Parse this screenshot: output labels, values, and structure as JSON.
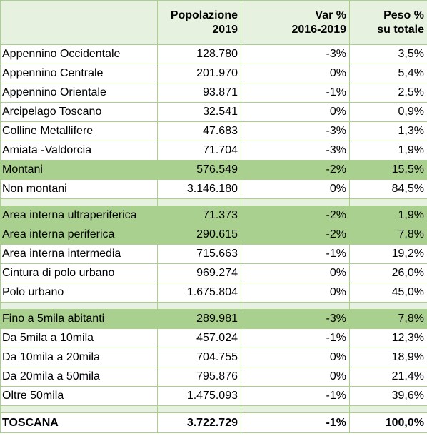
{
  "headers": {
    "population": [
      "Popolazione",
      "2019"
    ],
    "var": [
      "Var %",
      "2016-2019"
    ],
    "weight": [
      "Peso %",
      "su totale"
    ]
  },
  "groups": [
    [
      {
        "label": "Appennino Occidentale",
        "pop": "128.780",
        "var": "-3%",
        "weight": "3,5%",
        "highlight": false
      },
      {
        "label": "Appennino Centrale",
        "pop": "201.970",
        "var": "0%",
        "weight": "5,4%",
        "highlight": false
      },
      {
        "label": "Appennino Orientale",
        "pop": "93.871",
        "var": "-1%",
        "weight": "2,5%",
        "highlight": false
      },
      {
        "label": "Arcipelago Toscano",
        "pop": "32.541",
        "var": "0%",
        "weight": "0,9%",
        "highlight": false
      },
      {
        "label": "Colline Metallifere",
        "pop": "47.683",
        "var": "-3%",
        "weight": "1,3%",
        "highlight": false
      },
      {
        "label": "Amiata -Valdorcia",
        "pop": "71.704",
        "var": "-3%",
        "weight": "1,9%",
        "highlight": false
      },
      {
        "label": "Montani",
        "pop": "576.549",
        "var": "-2%",
        "weight": "15,5%",
        "highlight": true
      },
      {
        "label": "Non montani",
        "pop": "3.146.180",
        "var": "0%",
        "weight": "84,5%",
        "highlight": false
      }
    ],
    [
      {
        "label": "Area interna ultraperiferica",
        "pop": "71.373",
        "var": "-2%",
        "weight": "1,9%",
        "highlight": true
      },
      {
        "label": "Area interna periferica",
        "pop": "290.615",
        "var": "-2%",
        "weight": "7,8%",
        "highlight": true
      },
      {
        "label": "Area interna intermedia",
        "pop": "715.663",
        "var": "-1%",
        "weight": "19,2%",
        "highlight": false
      },
      {
        "label": "Cintura di polo urbano",
        "pop": "969.274",
        "var": "0%",
        "weight": "26,0%",
        "highlight": false
      },
      {
        "label": "Polo urbano",
        "pop": "1.675.804",
        "var": "0%",
        "weight": "45,0%",
        "highlight": false
      }
    ],
    [
      {
        "label": "Fino a 5mila abitanti",
        "pop": "289.981",
        "var": "-3%",
        "weight": "7,8%",
        "highlight": true
      },
      {
        "label": "Da 5mila a 10mila",
        "pop": "457.024",
        "var": "-1%",
        "weight": "12,3%",
        "highlight": false
      },
      {
        "label": "Da 10mila a 20mila",
        "pop": "704.755",
        "var": "0%",
        "weight": "18,9%",
        "highlight": false
      },
      {
        "label": "Da 20mila a 50mila",
        "pop": "795.876",
        "var": "0%",
        "weight": "21,4%",
        "highlight": false
      },
      {
        "label": "Oltre 50mila",
        "pop": "1.475.093",
        "var": "-1%",
        "weight": "39,6%",
        "highlight": false
      }
    ]
  ],
  "total": {
    "label": "TOSCANA",
    "pop": "3.722.729",
    "var": "-1%",
    "weight": "100,0%"
  },
  "colors": {
    "highlight": "#a9d08e",
    "light": "#e6f2df",
    "border": "#a9d08e"
  }
}
